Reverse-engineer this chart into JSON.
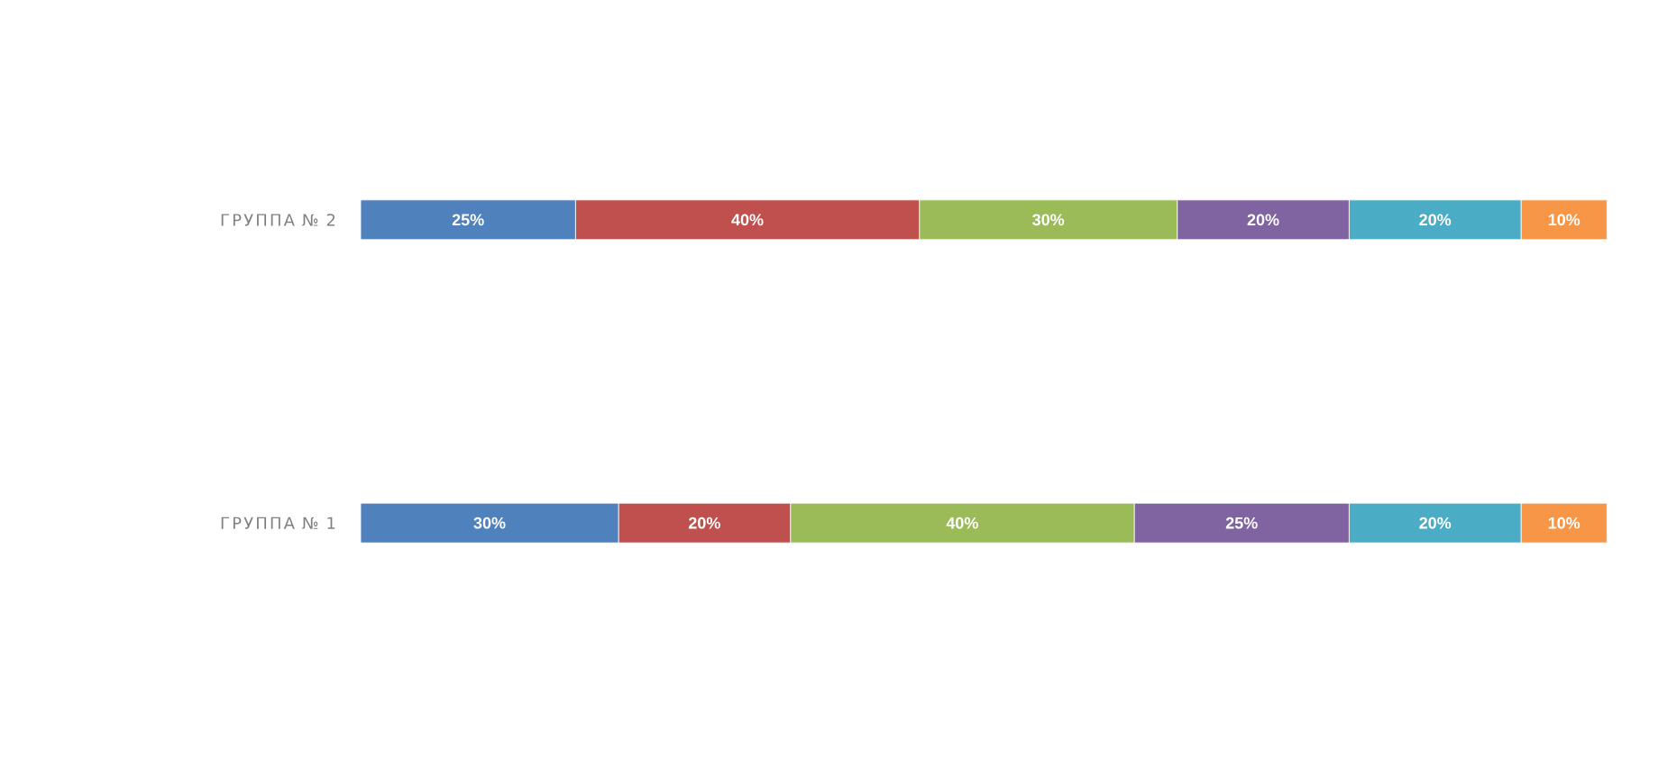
{
  "chart_data": {
    "type": "bar",
    "orientation": "horizontal",
    "stacked": true,
    "categories": [
      "ГРУППА № 2",
      "ГРУППА № 1"
    ],
    "series": [
      {
        "color": "#4f81bd",
        "values": [
          25,
          30
        ],
        "value_labels": [
          "25%",
          "30%"
        ]
      },
      {
        "color": "#c0504d",
        "values": [
          40,
          20
        ],
        "value_labels": [
          "40%",
          "20%"
        ]
      },
      {
        "color": "#9bbb59",
        "values": [
          30,
          40
        ],
        "value_labels": [
          "30%",
          "40%"
        ]
      },
      {
        "color": "#8064a2",
        "values": [
          20,
          25
        ],
        "value_labels": [
          "20%",
          "25%"
        ]
      },
      {
        "color": "#4bacc6",
        "values": [
          20,
          20
        ],
        "value_labels": [
          "20%",
          "20%"
        ]
      },
      {
        "color": "#f79646",
        "values": [
          10,
          10
        ],
        "value_labels": [
          "10%",
          "10%"
        ]
      }
    ]
  }
}
